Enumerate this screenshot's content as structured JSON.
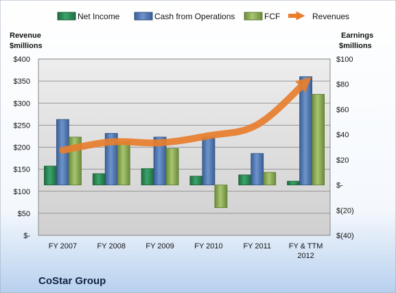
{
  "chart_data": {
    "type": "bar",
    "title": "CoStar Group",
    "categories": [
      "FY 2007",
      "FY 2008",
      "FY 2009",
      "FY 2010",
      "FY 2011",
      "FY & TTM 2012"
    ],
    "y_left": {
      "label_line1": "Revenue",
      "label_line2": "$millions",
      "range": [
        0,
        400
      ],
      "ticks": [
        0,
        50,
        100,
        150,
        200,
        250,
        300,
        350,
        400
      ],
      "tick_labels": [
        "$-",
        "$50",
        "$100",
        "$150",
        "$200",
        "$250",
        "$300",
        "$350",
        "$400"
      ]
    },
    "y_right": {
      "label_line1": "Earnings",
      "label_line2": "$millions",
      "range": [
        -40,
        100
      ],
      "ticks": [
        -40,
        -20,
        0,
        20,
        40,
        60,
        80,
        100
      ],
      "tick_labels": [
        "$(40)",
        "$(20)",
        "$-",
        "$20",
        "$40",
        "$60",
        "$80",
        "$100"
      ]
    },
    "series": [
      {
        "name": "Net Income",
        "type": "bar",
        "axis": "right",
        "color": "#2e8b57",
        "values": [
          15,
          9,
          13,
          7,
          8,
          3
        ]
      },
      {
        "name": "Cash from Operations",
        "type": "bar",
        "axis": "right",
        "color": "#4f79b6",
        "values": [
          52,
          41,
          38,
          38,
          25,
          86
        ]
      },
      {
        "name": "FCF",
        "type": "bar",
        "axis": "right",
        "color": "#8bab56",
        "values": [
          38,
          34,
          29,
          -18,
          10,
          72
        ]
      },
      {
        "name": "Revenues",
        "type": "line",
        "axis": "left",
        "color": "#e87e2e",
        "values": [
          193,
          212,
          210,
          226,
          251,
          348
        ]
      }
    ],
    "grid": true,
    "legend_position": "top"
  }
}
